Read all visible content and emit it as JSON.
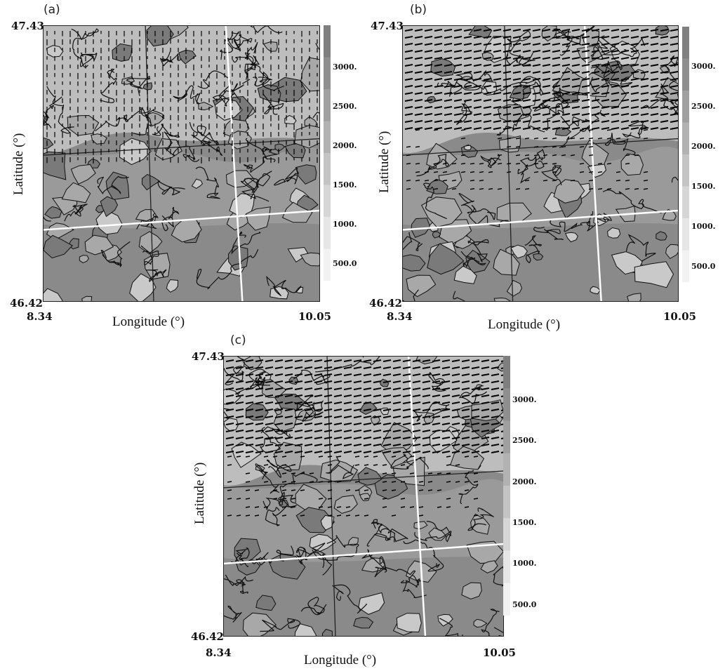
{
  "panels": [
    {
      "label": "(a)",
      "wind": "weak-south"
    },
    {
      "label": "(b)",
      "wind": "strong-north"
    },
    {
      "label": "(c)",
      "wind": "strong-north-full"
    }
  ],
  "axes": {
    "lat_top": "47.43",
    "lat_bottom": "46.42",
    "lon_left": "8.34",
    "lon_right": "10.05",
    "xlabel": "Longitude (°)",
    "ylabel": "Latitude (°)"
  },
  "colorbar": {
    "ticks": [
      "3000.",
      "2500.",
      "2000.",
      "1500.",
      "1000.",
      "500.0"
    ],
    "colors": [
      "#8f8f8f",
      "#a0a0a0",
      "#b2b2b2",
      "#c4c4c4",
      "#d6d6d6",
      "#e6e6e6"
    ]
  },
  "map_colors": {
    "high": "#bdbdbd",
    "mid": "#9a9a9a",
    "low": "#8a8a8a",
    "grid_lines": "#ffffff",
    "contours": "#111111"
  }
}
